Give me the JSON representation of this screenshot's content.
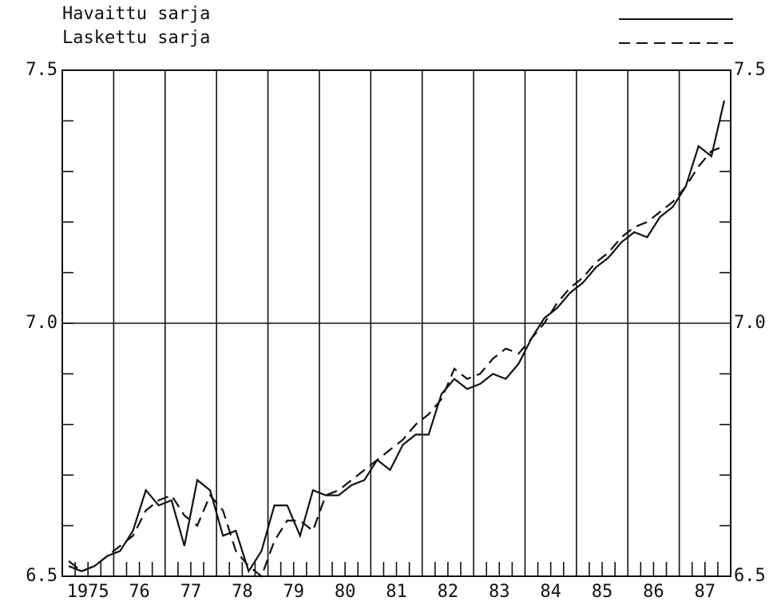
{
  "chart_data": {
    "type": "line",
    "series": [
      {
        "name": "Havaittu sarja",
        "color": "#111111",
        "dash": false,
        "values": [
          6.52,
          6.51,
          6.52,
          6.54,
          6.55,
          6.59,
          6.67,
          6.64,
          6.65,
          6.56,
          6.69,
          6.67,
          6.58,
          6.59,
          6.51,
          6.55,
          6.64,
          6.64,
          6.58,
          6.67,
          6.66,
          6.66,
          6.68,
          6.69,
          6.73,
          6.71,
          6.76,
          6.78,
          6.78,
          6.86,
          6.89,
          6.87,
          6.88,
          6.9,
          6.89,
          6.92,
          6.97,
          7.01,
          7.03,
          7.06,
          7.08,
          7.11,
          7.13,
          7.16,
          7.18,
          7.17,
          7.21,
          7.23,
          7.27,
          7.35,
          7.33,
          7.44
        ]
      },
      {
        "name": "Laskettu sarja",
        "color": "#111111",
        "dash": true,
        "values": [
          6.53,
          6.51,
          6.52,
          6.54,
          6.56,
          6.58,
          6.63,
          6.65,
          6.66,
          6.62,
          6.6,
          6.66,
          6.63,
          6.55,
          6.52,
          6.5,
          6.57,
          6.61,
          6.61,
          6.59,
          6.66,
          6.67,
          6.69,
          6.71,
          6.73,
          6.75,
          6.77,
          6.8,
          6.82,
          6.85,
          6.91,
          6.89,
          6.9,
          6.93,
          6.95,
          6.94,
          6.97,
          7.0,
          7.04,
          7.07,
          7.09,
          7.12,
          7.14,
          7.17,
          7.19,
          7.2,
          7.22,
          7.24,
          7.27,
          7.31,
          7.34,
          7.35
        ]
      }
    ],
    "x": [
      1975.125,
      1975.375,
      1975.625,
      1975.875,
      1976.125,
      1976.375,
      1976.625,
      1976.875,
      1977.125,
      1977.375,
      1977.625,
      1977.875,
      1978.125,
      1978.375,
      1978.625,
      1978.875,
      1979.125,
      1979.375,
      1979.625,
      1979.875,
      1980.125,
      1980.375,
      1980.625,
      1980.875,
      1981.125,
      1981.375,
      1981.625,
      1981.875,
      1982.125,
      1982.375,
      1982.625,
      1982.875,
      1983.125,
      1983.375,
      1983.625,
      1983.875,
      1984.125,
      1984.375,
      1984.625,
      1984.875,
      1985.125,
      1985.375,
      1985.625,
      1985.875,
      1986.125,
      1986.375,
      1986.625,
      1986.875,
      1987.125,
      1987.375,
      1987.625,
      1987.875
    ],
    "xlim": [
      1975,
      1988
    ],
    "xticks": [
      {
        "value": 1975.5,
        "label": "1975"
      },
      {
        "value": 1976.5,
        "label": "76"
      },
      {
        "value": 1977.5,
        "label": "77"
      },
      {
        "value": 1978.5,
        "label": "78"
      },
      {
        "value": 1979.5,
        "label": "79"
      },
      {
        "value": 1980.5,
        "label": "80"
      },
      {
        "value": 1981.5,
        "label": "81"
      },
      {
        "value": 1982.5,
        "label": "82"
      },
      {
        "value": 1983.5,
        "label": "83"
      },
      {
        "value": 1984.5,
        "label": "84"
      },
      {
        "value": 1985.5,
        "label": "85"
      },
      {
        "value": 1986.5,
        "label": "86"
      },
      {
        "value": 1987.5,
        "label": "87"
      }
    ],
    "xgrid": [
      1976,
      1977,
      1978,
      1979,
      1980,
      1981,
      1982,
      1983,
      1984,
      1985,
      1986,
      1987
    ],
    "xminor": [
      1975.25,
      1975.5,
      1975.75,
      1976.25,
      1976.5,
      1976.75,
      1977.25,
      1977.5,
      1977.75,
      1978.25,
      1978.5,
      1978.75,
      1979.25,
      1979.5,
      1979.75,
      1980.25,
      1980.5,
      1980.75,
      1981.25,
      1981.5,
      1981.75,
      1982.25,
      1982.5,
      1982.75,
      1983.25,
      1983.5,
      1983.75,
      1984.25,
      1984.5,
      1984.75,
      1985.25,
      1985.5,
      1985.75,
      1986.25,
      1986.5,
      1986.75,
      1987.25,
      1987.5,
      1987.75
    ],
    "ylim": [
      6.5,
      7.5
    ],
    "yticks": [
      6.5,
      {
        "value": 7,
        "label": "7.0"
      },
      7.5
    ],
    "yminor": [
      6.6,
      6.7,
      6.8,
      6.9,
      7.1,
      7.2,
      7.3,
      7.4
    ],
    "ygrid": [
      7
    ]
  }
}
